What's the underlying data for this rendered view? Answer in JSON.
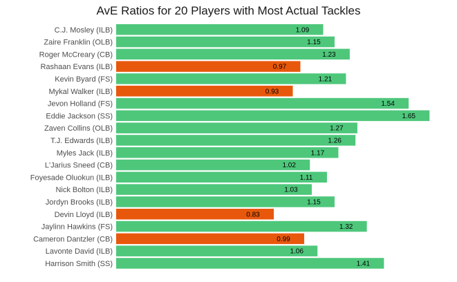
{
  "chart_data": {
    "type": "bar",
    "orientation": "horizontal",
    "title": "AvE Ratios for 20 Players with Most Actual Tackles",
    "xlabel": "",
    "ylabel": "",
    "xlim": [
      0,
      1.74
    ],
    "grid": false,
    "legend": "none",
    "colors": {
      "above_one": "#4ec77b",
      "below_one": "#e8580c"
    },
    "categories": [
      "C.J. Mosley (ILB)",
      "Zaire Franklin (OLB)",
      "Roger McCreary (CB)",
      "Rashaan Evans (ILB)",
      "Kevin Byard (FS)",
      "Mykal Walker (ILB)",
      "Jevon Holland (FS)",
      "Eddie Jackson (SS)",
      "Zaven Collins (OLB)",
      "T.J. Edwards (ILB)",
      "Myles Jack (ILB)",
      "L'Jarius Sneed (CB)",
      "Foyesade Oluokun (ILB)",
      "Nick Bolton (ILB)",
      "Jordyn Brooks (ILB)",
      "Devin Lloyd (ILB)",
      "Jaylinn Hawkins (FS)",
      "Cameron Dantzler (CB)",
      "Lavonte David (ILB)",
      "Harrison Smith (SS)"
    ],
    "values": [
      1.09,
      1.15,
      1.23,
      0.97,
      1.21,
      0.93,
      1.54,
      1.65,
      1.27,
      1.26,
      1.17,
      1.02,
      1.11,
      1.03,
      1.15,
      0.83,
      1.32,
      0.99,
      1.06,
      1.41
    ],
    "data_labels": [
      "1.09",
      "1.15",
      "1.23",
      "0.97",
      "1.21",
      "0.93",
      "1.54",
      "1.65",
      "1.27",
      "1.26",
      "1.17",
      "1.02",
      "1.11",
      "1.03",
      "1.15",
      "0.83",
      "1.32",
      "0.99",
      "1.06",
      "1.41"
    ]
  }
}
